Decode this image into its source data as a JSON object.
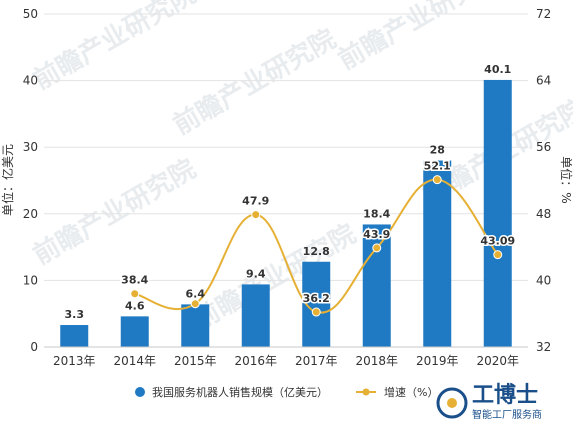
{
  "chart_data": {
    "type": "bar",
    "categories": [
      "2013年",
      "2014年",
      "2015年",
      "2016年",
      "2017年",
      "2018年",
      "2019年",
      "2020年"
    ],
    "series": [
      {
        "name": "我国服务机器人销售规模（亿美元）",
        "type": "bar",
        "axis": "left",
        "values": [
          3.3,
          4.6,
          6.4,
          9.4,
          12.8,
          18.4,
          28,
          40.1
        ],
        "labels": [
          "3.3",
          "4.6",
          "6.4",
          "9.4",
          "12.8",
          "18.4",
          "28",
          "40.1"
        ],
        "color": "#1f7ac3"
      },
      {
        "name": "增速（%）",
        "type": "line",
        "axis": "right",
        "values": [
          null,
          38.4,
          37.2,
          47.9,
          36.2,
          43.9,
          52.1,
          43.09
        ],
        "labels": [
          null,
          "38.4",
          null,
          "47.9",
          "36.2",
          "43.9",
          "52.1",
          "43.09"
        ],
        "color": "#e6b035"
      }
    ],
    "y_left": {
      "label": "单位：亿美元",
      "min": 0,
      "max": 50,
      "ticks": [
        0,
        10,
        20,
        30,
        40,
        50
      ]
    },
    "y_right": {
      "label": "单位：%",
      "min": 32,
      "max": 72,
      "ticks": [
        32,
        40,
        48,
        56,
        64,
        72
      ]
    },
    "grid": true,
    "legend_position": "bottom"
  },
  "watermark": "前瞻产业研究院",
  "brand": {
    "name": "工博士",
    "tagline": "智能工厂服务商"
  }
}
